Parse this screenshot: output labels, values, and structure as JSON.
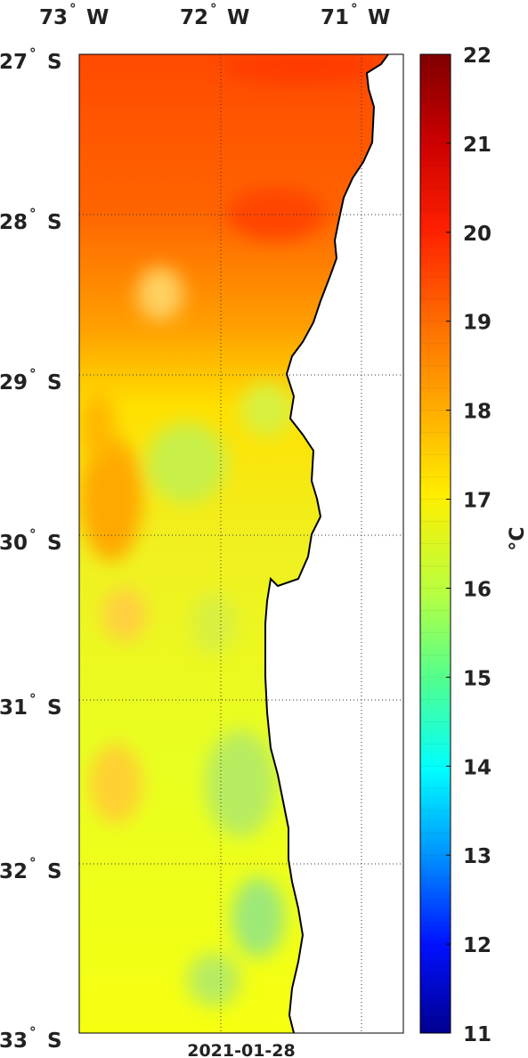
{
  "map": {
    "longitude_labels": [
      {
        "deg": "73",
        "dir": "W"
      },
      {
        "deg": "72",
        "dir": "W"
      },
      {
        "deg": "71",
        "dir": "W"
      }
    ],
    "latitude_labels": [
      {
        "deg": "27",
        "dir": "S"
      },
      {
        "deg": "28",
        "dir": "S"
      },
      {
        "deg": "29",
        "dir": "S"
      },
      {
        "deg": "30",
        "dir": "S"
      },
      {
        "deg": "31",
        "dir": "S"
      },
      {
        "deg": "32",
        "dir": "S"
      },
      {
        "deg": "33",
        "dir": "S"
      }
    ],
    "degree_symbol": "°",
    "date": "2021-01-28",
    "land_color": "#ffffff",
    "grid": "dotted"
  },
  "colorbar": {
    "unit_label": "°C",
    "ticks": [
      "22",
      "21",
      "20",
      "19",
      "18",
      "17",
      "16",
      "15",
      "14",
      "13",
      "12",
      "11"
    ],
    "min": 11,
    "max": 22,
    "colormap": "jet"
  }
}
